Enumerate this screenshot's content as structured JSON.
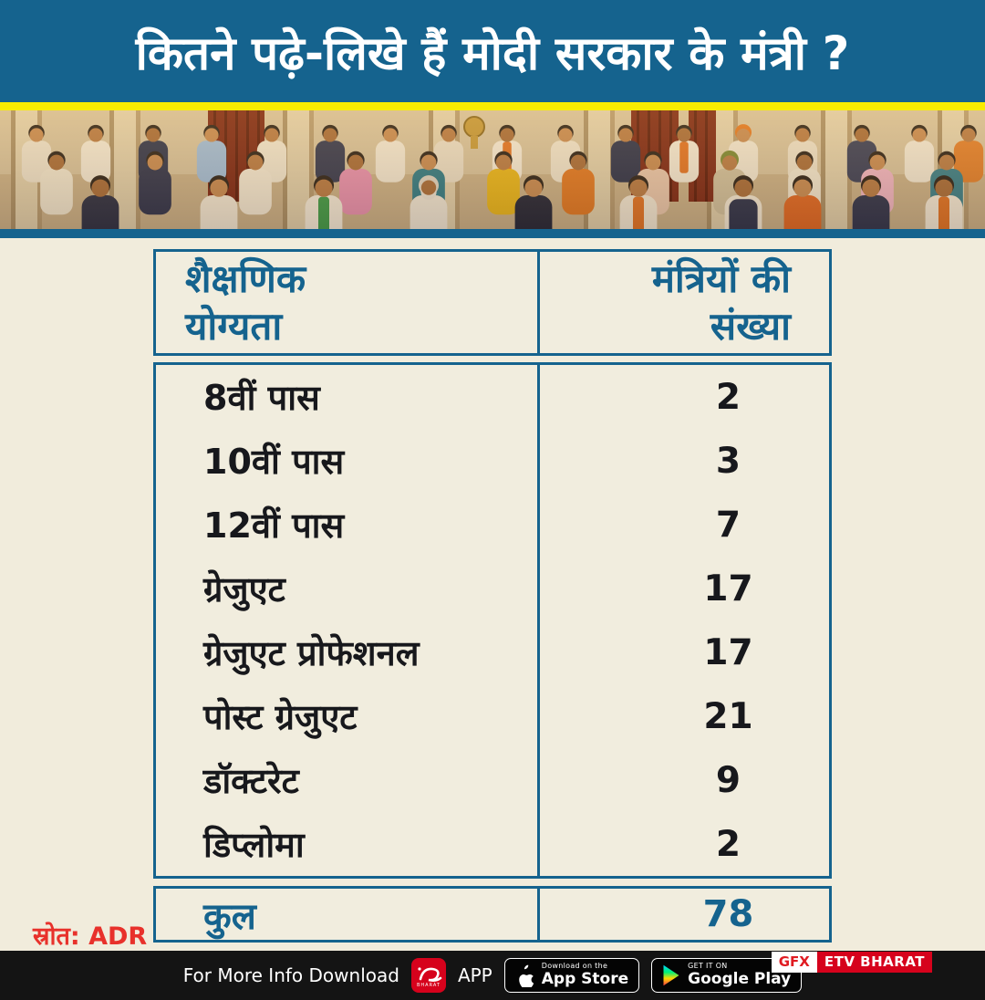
{
  "header": {
    "title": "कितने पढ़े-लिखे हैं मोदी सरकार के मंत्री ?"
  },
  "table": {
    "col_headers": [
      [
        "शैक्षणिक",
        "योग्यता"
      ],
      [
        "मंत्रियों की",
        "संख्या"
      ]
    ],
    "rows": [
      {
        "label": "8वीं पास",
        "value": "2"
      },
      {
        "label": "10वीं पास",
        "value": "3"
      },
      {
        "label": "12वीं पास",
        "value": "7"
      },
      {
        "label": "ग्रेजुएट",
        "value": "17"
      },
      {
        "label": "ग्रेजुएट प्रोफेशनल",
        "value": "17"
      },
      {
        "label": "पोस्ट ग्रेजुएट",
        "value": "21"
      },
      {
        "label": "डॉक्टरेट",
        "value": "9"
      },
      {
        "label": "डिप्लोमा",
        "value": "2"
      }
    ],
    "total": {
      "label": "कुल",
      "value": "78"
    }
  },
  "source": {
    "label": "स्रोत: ADR"
  },
  "footer": {
    "download_text": "For More Info Download",
    "app_text": "APP",
    "etv_logo_sub": "BHARAT",
    "appstore": {
      "line1": "Download on the",
      "line2": "App Store"
    },
    "googleplay": {
      "line1": "GET IT ON",
      "line2": "Google Play"
    },
    "gfx": {
      "label": "GFX",
      "brand": "ETV BHARAT"
    }
  },
  "colors": {
    "teal": "#15638e",
    "yellow": "#f8ec00",
    "cream": "#f1ecdc",
    "source_red": "#e8312b",
    "brand_red": "#d6021c",
    "footer_black": "#141414",
    "row_text": "#17181c"
  },
  "chart_data": {
    "type": "table",
    "title": "कितने पढ़े-लिखे हैं मोदी सरकार के मंत्री ?",
    "columns": [
      "शैक्षणिक योग्यता",
      "मंत्रियों की संख्या"
    ],
    "categories": [
      "8वीं पास",
      "10वीं पास",
      "12वीं पास",
      "ग्रेजुएट",
      "ग्रेजुएट प्रोफेशनल",
      "पोस्ट ग्रेजुएट",
      "डॉक्टरेट",
      "डिप्लोमा"
    ],
    "values": [
      2,
      3,
      7,
      17,
      17,
      21,
      9,
      2
    ],
    "total_label": "कुल",
    "total_value": 78,
    "source": "ADR"
  }
}
